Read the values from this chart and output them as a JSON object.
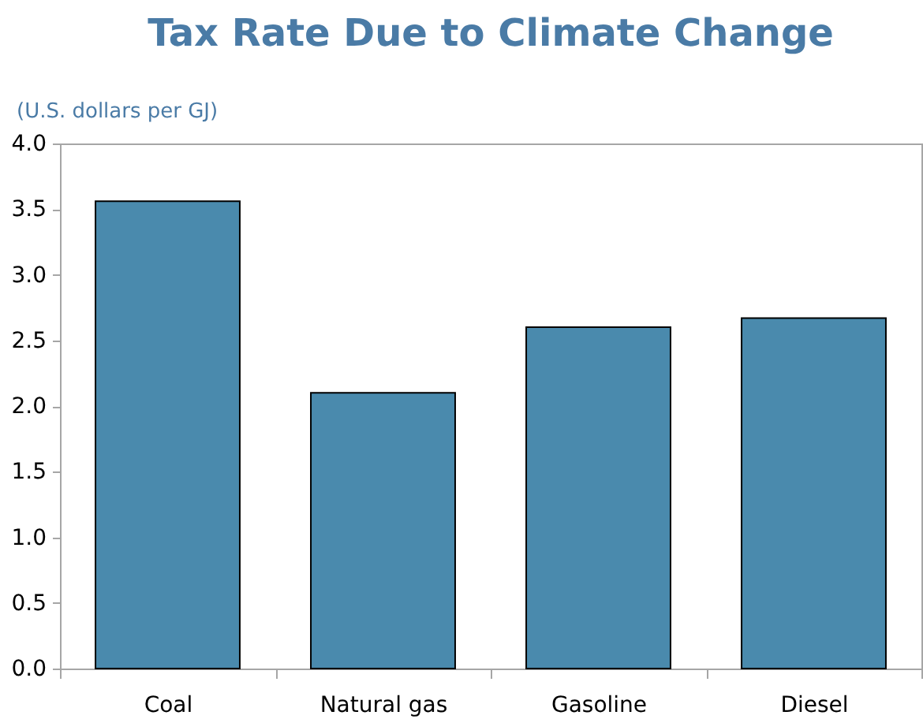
{
  "chart_data": {
    "type": "bar",
    "title": "Tax Rate Due to Climate Change",
    "ylabel": "(U.S. dollars per GJ)",
    "categories": [
      "Coal",
      "Natural gas",
      "Gasoline",
      "Diesel"
    ],
    "values": [
      3.56,
      2.1,
      2.6,
      2.67
    ],
    "color": "#4a8aad",
    "ylim": [
      0,
      4
    ],
    "yticks": [
      {
        "value": 0,
        "label": "0.0"
      },
      {
        "value": 0.5,
        "label": "0.5"
      },
      {
        "value": 1,
        "label": "1.0"
      },
      {
        "value": 1.5,
        "label": "1.5"
      },
      {
        "value": 2,
        "label": "2.0"
      },
      {
        "value": 2.5,
        "label": "2.5"
      },
      {
        "value": 3,
        "label": "3.0"
      },
      {
        "value": 3.5,
        "label": "3.5"
      },
      {
        "value": 4,
        "label": "4.0"
      }
    ],
    "grid": false
  }
}
